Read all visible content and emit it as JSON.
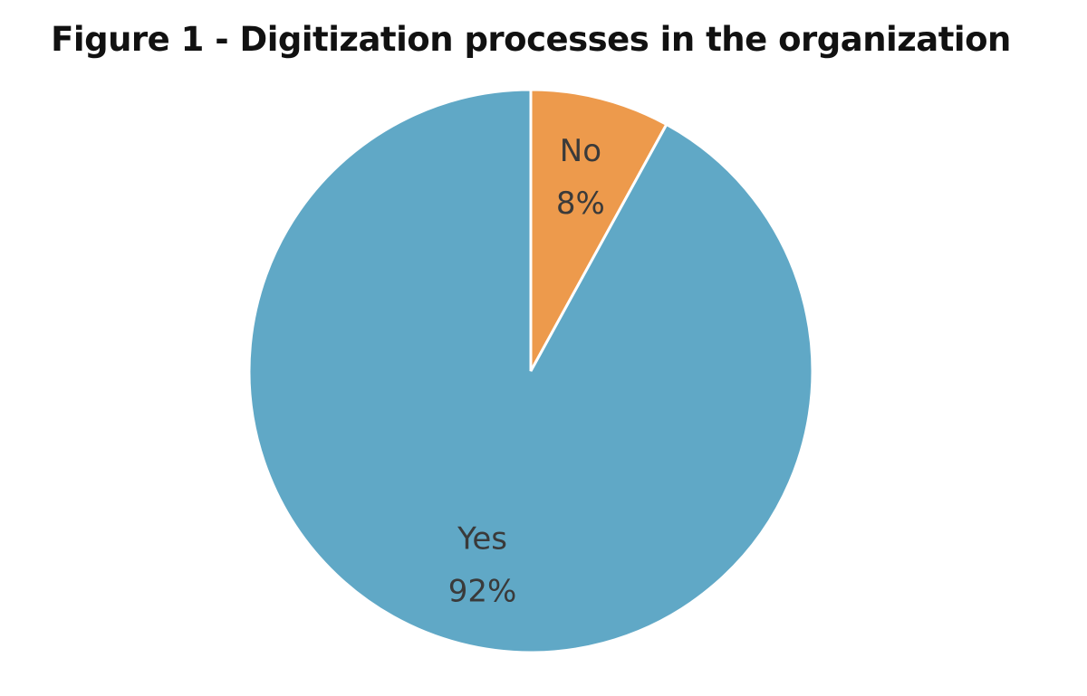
{
  "chart_data": {
    "type": "pie",
    "title": "Figure 1 - Digitization processes in the organization",
    "start_angle_deg": 0,
    "direction": "clockwise",
    "slices": [
      {
        "label": "No",
        "percent_label": "8%",
        "value": 8,
        "color": "#ED9A4C"
      },
      {
        "label": "Yes",
        "percent_label": "92%",
        "value": 92,
        "color": "#60A8C6"
      }
    ],
    "slice_border_color": "#ffffff",
    "legend": "none"
  }
}
